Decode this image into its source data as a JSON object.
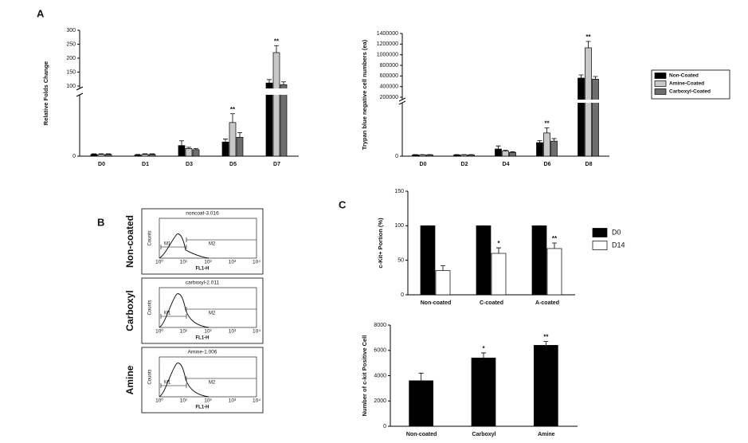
{
  "figure": {
    "letters": [
      "A",
      "C"
    ]
  },
  "chart_data": [
    {
      "type": "bar",
      "y_label": "Relative Folds Change",
      "categories": [
        "D0",
        "D1",
        "D3",
        "D5",
        "D7"
      ],
      "series": [
        {
          "name": "Non-Coated",
          "color": "#000000",
          "values": [
            3,
            2,
            18,
            24,
            111
          ],
          "errors": [
            1,
            1,
            8,
            5,
            12
          ],
          "significance": [
            null,
            null,
            null,
            null,
            null
          ]
        },
        {
          "name": "Amine-Coated",
          "color": "#c8c8c8",
          "values": [
            3,
            3,
            13,
            57,
            220
          ],
          "errors": [
            1,
            1,
            2,
            15,
            25
          ],
          "significance": [
            null,
            null,
            null,
            "**",
            "**"
          ]
        },
        {
          "name": "Carboxyl-Coated",
          "color": "#6e6e6e",
          "values": [
            3,
            3,
            11,
            32,
            105
          ],
          "errors": [
            1,
            1,
            2,
            8,
            10
          ],
          "significance": [
            null,
            null,
            null,
            null,
            null
          ]
        }
      ],
      "ylim": [
        0,
        300
      ],
      "ybreak": 100,
      "yticks": [
        0,
        100,
        150,
        200,
        250,
        300
      ],
      "legend": null
    },
    {
      "type": "bar",
      "y_label": "Trypan blue negative cell numbers (ea)",
      "categories": [
        "D0",
        "D2",
        "D4",
        "D6",
        "D8"
      ],
      "series": [
        {
          "name": "Non-Coated",
          "color": "#000000",
          "values": [
            5000,
            5000,
            28000,
            53000,
            560000
          ],
          "errors": [
            1000,
            1000,
            12000,
            8000,
            60000
          ],
          "significance": [
            null,
            null,
            null,
            null,
            null
          ]
        },
        {
          "name": "Amine-Coated",
          "color": "#c8c8c8",
          "values": [
            5000,
            5000,
            20000,
            91000,
            1130000
          ],
          "errors": [
            1000,
            1000,
            3000,
            20000,
            120000
          ],
          "significance": [
            null,
            null,
            null,
            "**",
            "**"
          ]
        },
        {
          "name": "Carboxyl-Coated",
          "color": "#6e6e6e",
          "values": [
            5000,
            5000,
            15000,
            59000,
            540000
          ],
          "errors": [
            1000,
            1000,
            2000,
            10000,
            50000
          ],
          "significance": [
            null,
            null,
            null,
            null,
            null
          ]
        }
      ],
      "ylim": [
        0,
        1400000
      ],
      "ybreak": 200000,
      "yticks": [
        0,
        200000,
        400000,
        600000,
        800000,
        1000000,
        1200000,
        1400000
      ],
      "legend": "right"
    },
    {
      "type": "bar",
      "y_label": "c-Kit+ Portion (%)",
      "categories": [
        "Non-coated",
        "C-coated",
        "A-coated"
      ],
      "series": [
        {
          "name": "D0",
          "color": "#000000",
          "values": [
            100,
            100,
            100
          ],
          "errors": [
            0,
            0,
            0
          ],
          "significance": [
            null,
            null,
            null
          ]
        },
        {
          "name": "D14",
          "color": "#ffffff",
          "values": [
            35,
            60,
            67
          ],
          "errors": [
            7,
            8,
            8
          ],
          "significance": [
            null,
            "*",
            "**"
          ]
        }
      ],
      "ylim": [
        0,
        150
      ],
      "yticks": [
        0,
        50,
        100,
        150
      ],
      "legend": "right"
    },
    {
      "type": "bar",
      "y_label": "Number of c-kit Positive Cell",
      "categories": [
        "Non-coated",
        "Carboxyl",
        "Amine"
      ],
      "series": [
        {
          "color": "#000000",
          "values": [
            3600,
            5400,
            6400
          ],
          "errors": [
            600,
            400,
            300
          ],
          "significance": [
            null,
            "*",
            "**"
          ]
        }
      ],
      "ylim": [
        0,
        8000
      ],
      "yticks": [
        0,
        2000,
        4000,
        6000,
        8000
      ],
      "legend": null
    }
  ],
  "panel_b": {
    "letter": "B",
    "panels": [
      {
        "row_label": "Non-coated",
        "title": "noncoat-3.016",
        "markers": [
          "M1",
          "M2"
        ],
        "x_label": "FL1-H",
        "y_label": "Counts",
        "x_ticks": [
          "10⁰",
          "10¹",
          "10²",
          "10³",
          "10⁴"
        ]
      },
      {
        "row_label": "Carboxyl",
        "title": "carboxyl-2.011",
        "markers": [
          "M1",
          "M2"
        ],
        "x_label": "FL1-H",
        "y_label": "Counts",
        "x_ticks": [
          "10⁰",
          "10¹",
          "10²",
          "10³",
          "10⁴"
        ]
      },
      {
        "row_label": "Amine",
        "title": "Amine-1.006",
        "markers": [
          "M1",
          "M2"
        ],
        "x_label": "FL1-H",
        "y_label": "Counts",
        "x_ticks": [
          "10⁰",
          "10¹",
          "10²",
          "10³",
          "10⁴"
        ]
      }
    ]
  }
}
